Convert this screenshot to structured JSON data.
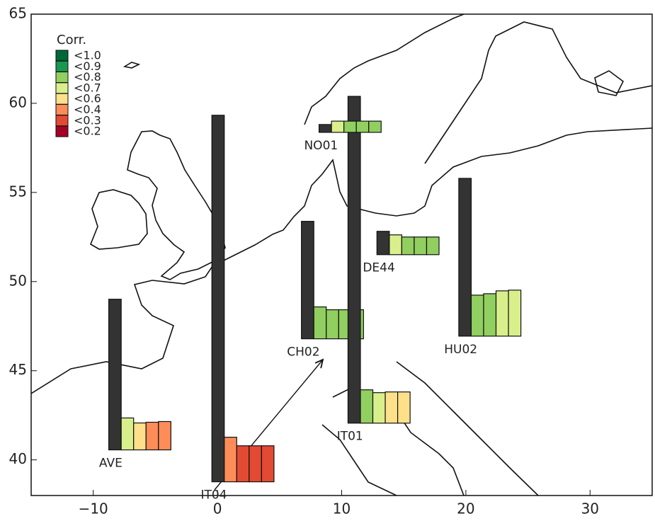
{
  "chart_data": {
    "type": "map-bars",
    "xlim": [
      -15,
      35
    ],
    "ylim": [
      38,
      65
    ],
    "xticks": [
      {
        "value": -10,
        "label": "−10"
      },
      0,
      10,
      20,
      30
    ],
    "yticks": [
      40,
      45,
      50,
      55,
      60,
      65
    ],
    "legend": {
      "title": "Corr.",
      "items": [
        {
          "label": "<1.0",
          "color": "#006837"
        },
        {
          "label": "<0.9",
          "color": "#1a9850"
        },
        {
          "label": "<0.8",
          "color": "#91cf60"
        },
        {
          "label": "<0.7",
          "color": "#d9ef8b"
        },
        {
          "label": "<0.6",
          "color": "#fee08b"
        },
        {
          "label": "<0.4",
          "color": "#fc8d59"
        },
        {
          "label": "<0.3",
          "color": "#e34a33"
        },
        {
          "label": "<0.2",
          "color": "#a50026"
        }
      ]
    },
    "stations": [
      {
        "name": "AVE",
        "lon": -8.75,
        "lat": 40.56,
        "values": [
          8.45,
          1.79,
          1.51,
          1.55,
          1.59
        ],
        "colors": [
          "#333333",
          "#d9ef8b",
          "#fee08b",
          "#fc8d59",
          "#fc8d59"
        ]
      },
      {
        "name": "IT04",
        "lon": -0.45,
        "lat": 38.77,
        "values": [
          20.56,
          2.5,
          2.02,
          2.02,
          2.02
        ],
        "colors": [
          "#333333",
          "#fc8d59",
          "#e34a33",
          "#e34a33",
          "#e34a33"
        ]
      },
      {
        "name": "CH02",
        "lon": 6.76,
        "lat": 46.79,
        "values": [
          6.59,
          1.79,
          1.63,
          1.63,
          1.63
        ],
        "colors": [
          "#333333",
          "#91cf60",
          "#91cf60",
          "#91cf60",
          "#91cf60"
        ]
      },
      {
        "name": "IT01",
        "lon": 10.51,
        "lat": 42.06,
        "values": [
          18.33,
          1.87,
          1.71,
          1.75,
          1.75
        ],
        "colors": [
          "#333333",
          "#91cf60",
          "#d9ef8b",
          "#fee08b",
          "#fee08b"
        ]
      },
      {
        "name": "NO01",
        "lon": 8.18,
        "lat": 58.37,
        "values": [
          0.44,
          0.63,
          0.63,
          0.63,
          0.63
        ],
        "colors": [
          "#333333",
          "#d9ef8b",
          "#91cf60",
          "#91cf60",
          "#91cf60"
        ]
      },
      {
        "name": "DE44",
        "lon": 12.84,
        "lat": 51.51,
        "values": [
          1.31,
          1.11,
          0.99,
          0.99,
          0.99
        ],
        "colors": [
          "#333333",
          "#d9ef8b",
          "#91cf60",
          "#91cf60",
          "#91cf60"
        ]
      },
      {
        "name": "HU02",
        "lon": 19.43,
        "lat": 46.94,
        "values": [
          8.85,
          2.3,
          2.38,
          2.54,
          2.58
        ],
        "colors": [
          "#333333",
          "#91cf60",
          "#91cf60",
          "#d9ef8b",
          "#d9ef8b"
        ]
      }
    ]
  }
}
